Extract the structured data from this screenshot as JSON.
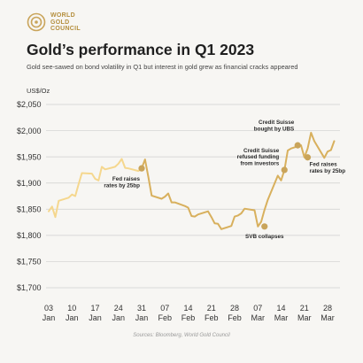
{
  "header": {
    "logo_line1": "WORLD",
    "logo_line2": "GOLD",
    "logo_line3": "COUNCIL",
    "title": "Gold’s performance in Q1 2023",
    "subtitle": "Gold see-sawed on bond volatility in Q1 but interest in gold grew as financial cracks appeared",
    "unit": "US$/Oz"
  },
  "footer": {
    "source": "Sources: Bloomberg, World Gold Council"
  },
  "colors": {
    "light_gold": "#f5d78e",
    "dark_gold": "#d8b05d",
    "marker": "#c9a45a",
    "grid": "#cfcfcf"
  },
  "chart_data": {
    "type": "line",
    "title": "Gold’s performance in Q1 2023",
    "ylabel": "US$/Oz",
    "ylim": [
      1700,
      2050
    ],
    "y_ticks": [
      1700,
      1750,
      1800,
      1850,
      1900,
      1950,
      2000,
      2050
    ],
    "y_tick_labels": [
      "$1,700",
      "$1,750",
      "$1,800",
      "$1,850",
      "$1,900",
      "$1,950",
      "$2,000",
      "$2,050"
    ],
    "x_ticks": [
      {
        "date": "2023-01-03",
        "day": "03",
        "month": "Jan"
      },
      {
        "date": "2023-01-10",
        "day": "10",
        "month": "Jan"
      },
      {
        "date": "2023-01-17",
        "day": "17",
        "month": "Jan"
      },
      {
        "date": "2023-01-24",
        "day": "24",
        "month": "Jan"
      },
      {
        "date": "2023-01-31",
        "day": "31",
        "month": "Jan"
      },
      {
        "date": "2023-02-07",
        "day": "07",
        "month": "Feb"
      },
      {
        "date": "2023-02-14",
        "day": "14",
        "month": "Feb"
      },
      {
        "date": "2023-02-21",
        "day": "21",
        "month": "Feb"
      },
      {
        "date": "2023-02-28",
        "day": "28",
        "month": "Feb"
      },
      {
        "date": "2023-03-07",
        "day": "07",
        "month": "Mar"
      },
      {
        "date": "2023-03-14",
        "day": "14",
        "month": "Mar"
      },
      {
        "date": "2023-03-21",
        "day": "21",
        "month": "Mar"
      },
      {
        "date": "2023-03-28",
        "day": "28",
        "month": "Mar"
      }
    ],
    "series": [
      {
        "segment": "light",
        "points": [
          [
            "2023-01-03",
            1846
          ],
          [
            "2023-01-04",
            1855
          ],
          [
            "2023-01-05",
            1835
          ],
          [
            "2023-01-06",
            1866
          ],
          [
            "2023-01-09",
            1872
          ],
          [
            "2023-01-10",
            1878
          ],
          [
            "2023-01-11",
            1875
          ],
          [
            "2023-01-12",
            1898
          ],
          [
            "2023-01-13",
            1919
          ],
          [
            "2023-01-16",
            1918
          ],
          [
            "2023-01-17",
            1908
          ],
          [
            "2023-01-18",
            1905
          ],
          [
            "2023-01-19",
            1931
          ],
          [
            "2023-01-20",
            1926
          ],
          [
            "2023-01-23",
            1931
          ],
          [
            "2023-01-24",
            1937
          ],
          [
            "2023-01-25",
            1946
          ],
          [
            "2023-01-26",
            1929
          ],
          [
            "2023-01-27",
            1928
          ],
          [
            "2023-01-30",
            1923
          ],
          [
            "2023-01-31",
            1928
          ]
        ]
      },
      {
        "segment": "dark",
        "points": [
          [
            "2023-01-31",
            1928
          ],
          [
            "2023-02-01",
            1945
          ],
          [
            "2023-02-02",
            1912
          ],
          [
            "2023-02-03",
            1876
          ],
          [
            "2023-02-06",
            1870
          ],
          [
            "2023-02-07",
            1874
          ],
          [
            "2023-02-08",
            1880
          ],
          [
            "2023-02-09",
            1863
          ],
          [
            "2023-02-10",
            1863
          ],
          [
            "2023-02-13",
            1856
          ],
          [
            "2023-02-14",
            1853
          ],
          [
            "2023-02-15",
            1837
          ],
          [
            "2023-02-16",
            1836
          ],
          [
            "2023-02-17",
            1840
          ],
          [
            "2023-02-20",
            1846
          ],
          [
            "2023-02-21",
            1835
          ],
          [
            "2023-02-22",
            1823
          ],
          [
            "2023-02-23",
            1822
          ],
          [
            "2023-02-24",
            1812
          ],
          [
            "2023-02-27",
            1818
          ],
          [
            "2023-02-28",
            1836
          ],
          [
            "2023-03-01",
            1838
          ],
          [
            "2023-03-02",
            1842
          ],
          [
            "2023-03-03",
            1851
          ],
          [
            "2023-03-06",
            1848
          ],
          [
            "2023-03-07",
            1817
          ],
          [
            "2023-03-08",
            1826
          ],
          [
            "2023-03-09",
            1849
          ],
          [
            "2023-03-10",
            1868
          ],
          [
            "2023-03-13",
            1914
          ],
          [
            "2023-03-14",
            1905
          ],
          [
            "2023-03-15",
            1925
          ],
          [
            "2023-03-16",
            1962
          ],
          [
            "2023-03-17",
            1966
          ],
          [
            "2023-03-20",
            1972
          ],
          [
            "2023-03-21",
            1949
          ],
          [
            "2023-03-22",
            1966
          ],
          [
            "2023-03-23",
            1996
          ],
          [
            "2023-03-24",
            1980
          ],
          [
            "2023-03-27",
            1948
          ],
          [
            "2023-03-28",
            1960
          ],
          [
            "2023-03-29",
            1963
          ],
          [
            "2023-03-30",
            1980
          ]
        ]
      }
    ],
    "annotations": [
      {
        "date": "2023-01-31",
        "value": 1928,
        "lines": [
          "Fed raises",
          "rates by 25bp"
        ],
        "anchor": "end"
      },
      {
        "date": "2023-03-09",
        "value": 1817,
        "lines": [
          "SVB collapses"
        ],
        "anchor": "middle"
      },
      {
        "date": "2023-03-15",
        "value": 1925,
        "lines": [
          "Credit Suisse",
          "refused funding",
          "from investors"
        ],
        "anchor": "end"
      },
      {
        "date": "2023-03-19",
        "value": 1972,
        "lines": [
          "Credit Suisse",
          "bought by UBS"
        ],
        "anchor": "end"
      },
      {
        "date": "2023-03-22",
        "value": 1949,
        "lines": [
          "Fed raises",
          "rates by 25bp"
        ],
        "anchor": "start"
      }
    ]
  }
}
